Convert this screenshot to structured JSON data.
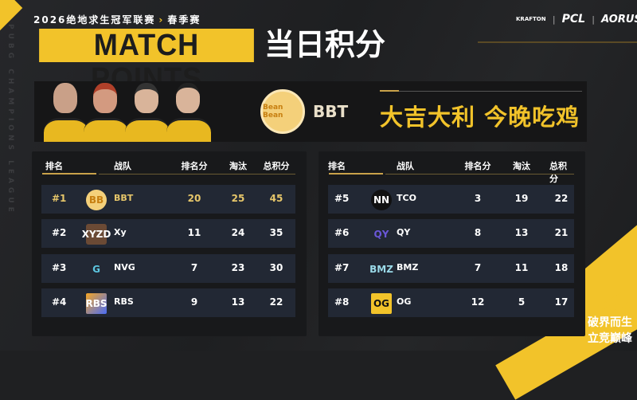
{
  "header": {
    "subtitle": "2026绝地求生冠军联赛",
    "season": "春季赛",
    "title_en": "MATCH POINTS",
    "title_cn": "当日积分",
    "side_text": "PUBG CHAMPIONS LEAGUE"
  },
  "sponsors": [
    "KRAFTON",
    "PCL",
    "AORUS"
  ],
  "banner": {
    "team": "BBT",
    "slogan": "大吉大利 今晚吃鸡",
    "logo_text": "Bean Bean"
  },
  "columns": {
    "rank": "排名",
    "team": "战队",
    "placement": "排名分",
    "kills": "淘汰",
    "total": "总积分"
  },
  "standings_left": [
    {
      "rank": "#1",
      "team": "BBT",
      "logo": "BB",
      "placement": "20",
      "kills": "25",
      "total": "45",
      "highlight": true
    },
    {
      "rank": "#2",
      "team": "Xy",
      "logo": "XYZD",
      "placement": "11",
      "kills": "24",
      "total": "35"
    },
    {
      "rank": "#3",
      "team": "NVG",
      "logo": "G",
      "placement": "7",
      "kills": "23",
      "total": "30"
    },
    {
      "rank": "#4",
      "team": "RBS",
      "logo": "RBS",
      "placement": "9",
      "kills": "13",
      "total": "22"
    }
  ],
  "standings_right": [
    {
      "rank": "#5",
      "team": "TCO",
      "logo": "NN",
      "placement": "3",
      "kills": "19",
      "total": "22"
    },
    {
      "rank": "#6",
      "team": "QY",
      "logo": "QY",
      "placement": "8",
      "kills": "13",
      "total": "21"
    },
    {
      "rank": "#7",
      "team": "BMZ",
      "logo": "BMZ",
      "placement": "7",
      "kills": "11",
      "total": "18"
    },
    {
      "rank": "#8",
      "team": "OG",
      "logo": "OG",
      "placement": "12",
      "kills": "5",
      "total": "17"
    }
  ],
  "corner": {
    "year": "2026",
    "line1": "破界而生",
    "line2": "立竞巅峰"
  },
  "colors": {
    "accent": "#f2c32a",
    "row": "#222834",
    "background": "#1f2022"
  }
}
